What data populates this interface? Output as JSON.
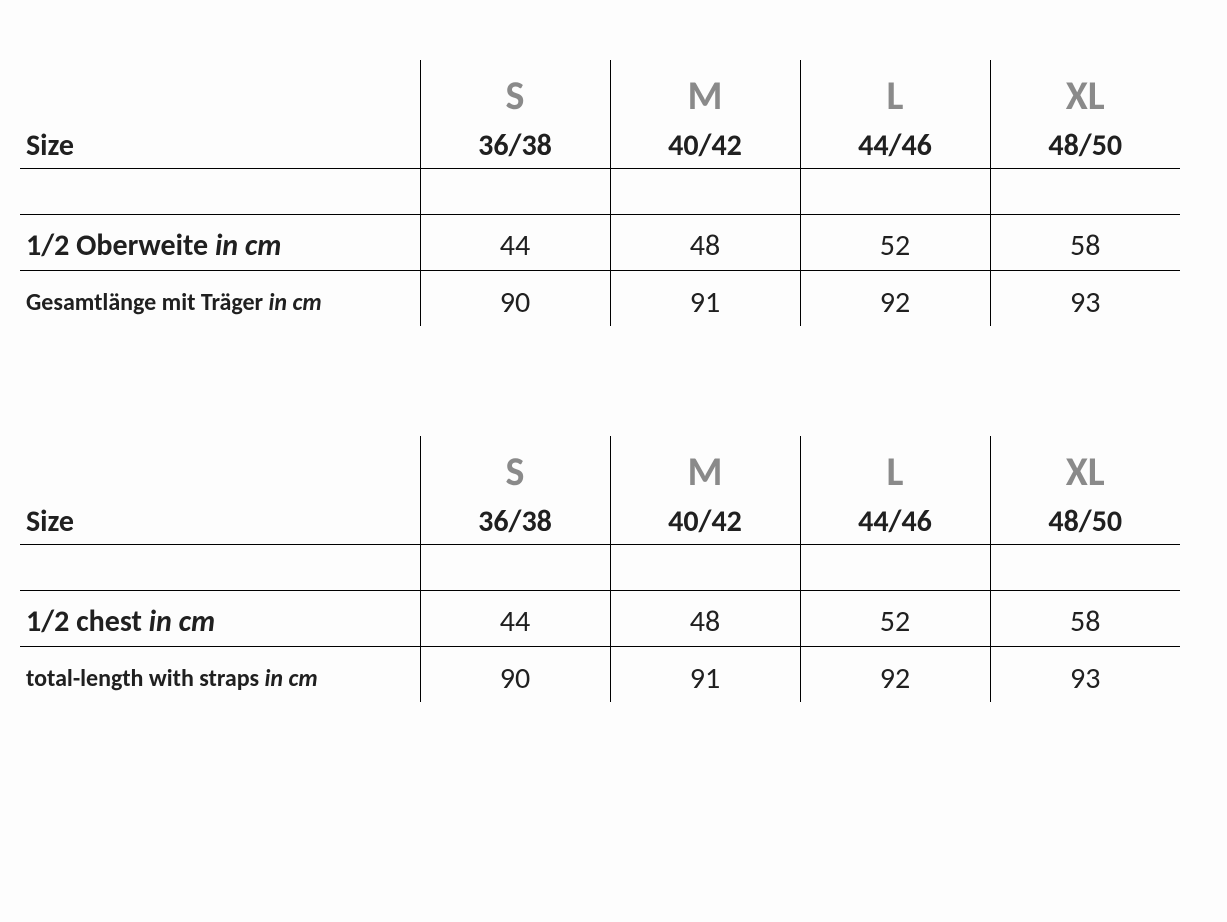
{
  "colors": {
    "background": "#fdfdfd",
    "text": "#202020",
    "letter_header": "#8a8a8a",
    "border": "#000000"
  },
  "typography": {
    "family": "Calibri",
    "letter_size_pt": 40,
    "num_size_pt": 30,
    "value_size_pt": 30,
    "row2_label_size_pt": 24
  },
  "table_de": {
    "size_label": "Size",
    "letters": [
      "S",
      "M",
      "L",
      "XL"
    ],
    "nums": [
      "36/38",
      "40/42",
      "44/46",
      "48/50"
    ],
    "rows": [
      {
        "label": "1/2 Oberweite",
        "unit": "in cm",
        "values": [
          "44",
          "48",
          "52",
          "58"
        ]
      },
      {
        "label": "Gesamtlänge mit Träger",
        "unit": "in cm",
        "values": [
          "90",
          "91",
          "92",
          "93"
        ]
      }
    ]
  },
  "table_en": {
    "size_label": "Size",
    "letters": [
      "S",
      "M",
      "L",
      "XL"
    ],
    "nums": [
      "36/38",
      "40/42",
      "44/46",
      "48/50"
    ],
    "rows": [
      {
        "label": "1/2 chest",
        "unit": "in cm",
        "values": [
          "44",
          "48",
          "52",
          "58"
        ]
      },
      {
        "label": "total-length with straps",
        "unit": "in cm",
        "values": [
          "90",
          "91",
          "92",
          "93"
        ]
      }
    ]
  }
}
